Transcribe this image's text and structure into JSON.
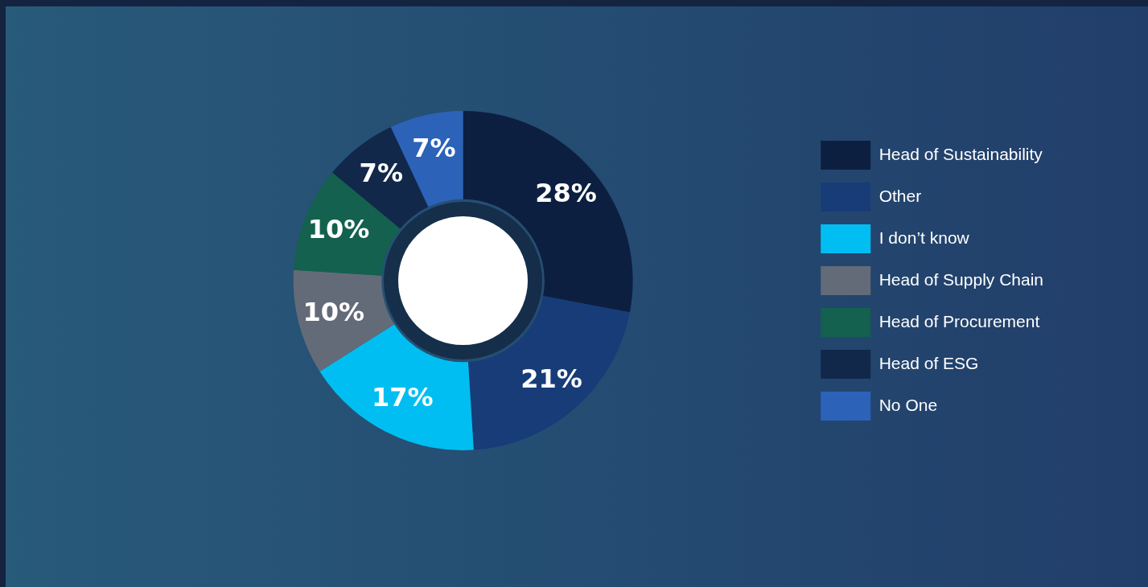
{
  "chart_data": {
    "type": "donut",
    "categories": [
      "Head of Sustainability",
      "Other",
      "I don’t know",
      "Head of Supply Chain",
      "Head of Procurement",
      "Head of ESG",
      "No One"
    ],
    "values": [
      28,
      21,
      17,
      10,
      10,
      7,
      7
    ],
    "colors": [
      "#0d1f40",
      "#173c78",
      "#00bef2",
      "#636b78",
      "#13614e",
      "#12284a",
      "#2c62b8"
    ],
    "value_labels": [
      "28%",
      "21%",
      "17%",
      "10%",
      "10%",
      "7%",
      "7%"
    ],
    "legend": "right"
  }
}
